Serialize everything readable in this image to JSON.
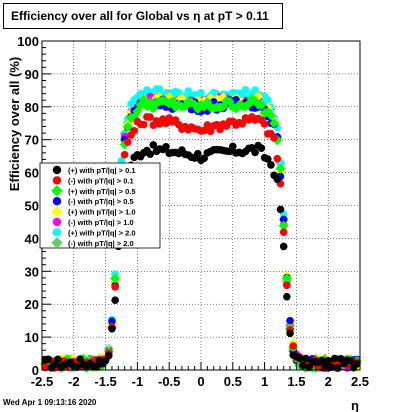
{
  "title": "Efficiency over all for Global vs   η at pT > 0.11",
  "footer": "Wed Apr  1 09:13:16 2020",
  "chart_data": {
    "type": "scatter",
    "xlabel": "η",
    "ylabel": "Efficiency over all (%)",
    "xlim": [
      -2.5,
      2.5
    ],
    "ylim": [
      0,
      100
    ],
    "x_ticks": [
      "-2.5",
      "-2",
      "-1.5",
      "-1",
      "-0.5",
      "0",
      "0.5",
      "1",
      "1.5",
      "2",
      "2.5"
    ],
    "y_ticks": [
      "0",
      "10",
      "20",
      "30",
      "40",
      "50",
      "60",
      "70",
      "80",
      "90",
      "100"
    ],
    "grid": true,
    "legend_position": "middle-left",
    "series": [
      {
        "name": "(+) with pT/|q| > 0.1",
        "color": "#000000",
        "plateau_center": 65,
        "plateau_edge": 67
      },
      {
        "name": "(-) with pT/|q| > 0.1",
        "color": "#ff0000",
        "plateau_center": 73,
        "plateau_edge": 76
      },
      {
        "name": "(+) with pT/|q| > 0.5",
        "color": "#00ff00",
        "plateau_center": 80,
        "plateau_edge": 81
      },
      {
        "name": "(-) with pT/|q| > 0.5",
        "color": "#0000ff",
        "plateau_center": 80,
        "plateau_edge": 81
      },
      {
        "name": "(+) with pT/|q| > 1.0",
        "color": "#ffff00",
        "plateau_center": 81,
        "plateau_edge": 82
      },
      {
        "name": "(-) with pT/|q| > 1.0",
        "color": "#ff00ff",
        "plateau_center": 81,
        "plateau_edge": 82
      },
      {
        "name": "(+) with pT/|q| > 2.0",
        "color": "#00ffff",
        "plateau_center": 83,
        "plateau_edge": 84
      },
      {
        "name": "(-) with pT/|q| > 2.0",
        "color": "#66cc66",
        "plateau_center": 82,
        "plateau_edge": 83
      }
    ]
  }
}
